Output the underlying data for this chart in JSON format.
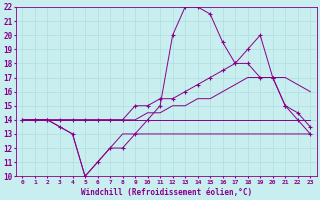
{
  "xlabel": "Windchill (Refroidissement éolien,°C)",
  "background_color": "#c8eef0",
  "grid_color": "#b0dde0",
  "line_color": "#880088",
  "xlim": [
    -0.5,
    23.5
  ],
  "ylim": [
    10,
    22
  ],
  "yticks": [
    10,
    11,
    12,
    13,
    14,
    15,
    16,
    17,
    18,
    19,
    20,
    21,
    22
  ],
  "xticks": [
    0,
    1,
    2,
    3,
    4,
    5,
    6,
    7,
    8,
    9,
    10,
    11,
    12,
    13,
    14,
    15,
    16,
    17,
    18,
    19,
    20,
    21,
    22,
    23
  ],
  "series": [
    {
      "x": [
        0,
        1,
        2,
        3,
        4,
        5,
        6,
        7,
        8,
        9,
        10,
        11,
        12,
        13,
        14,
        15,
        16,
        17,
        18,
        19,
        20,
        21,
        22,
        23
      ],
      "y": [
        14,
        14,
        14,
        13.5,
        13,
        10,
        11,
        12,
        13,
        13,
        13,
        13,
        13,
        13,
        13,
        13,
        13,
        13,
        13,
        13,
        13,
        13,
        13,
        13
      ],
      "marker": false
    },
    {
      "x": [
        0,
        1,
        2,
        3,
        4,
        5,
        6,
        7,
        8,
        9,
        10,
        11,
        12,
        13,
        14,
        15,
        16,
        17,
        18,
        19,
        20,
        21,
        22,
        23
      ],
      "y": [
        14,
        14,
        14,
        14,
        14,
        14,
        14,
        14,
        14,
        14,
        14,
        14,
        14,
        14,
        14,
        14,
        14,
        14,
        14,
        14,
        14,
        14,
        14,
        14
      ],
      "marker": false
    },
    {
      "x": [
        0,
        1,
        2,
        3,
        4,
        5,
        6,
        7,
        8,
        9,
        10,
        11,
        12,
        13,
        14,
        15,
        16,
        17,
        18,
        19,
        20,
        21,
        22,
        23
      ],
      "y": [
        14,
        14,
        14,
        14,
        14,
        14,
        14,
        14,
        14,
        14,
        14.5,
        14.5,
        15,
        15,
        15.5,
        15.5,
        16,
        16.5,
        17,
        17,
        17,
        17,
        16.5,
        16
      ],
      "marker": false
    },
    {
      "x": [
        0,
        1,
        2,
        3,
        4,
        5,
        6,
        7,
        8,
        9,
        10,
        11,
        12,
        13,
        14,
        15,
        16,
        17,
        18,
        19,
        20,
        21,
        22,
        23
      ],
      "y": [
        14,
        14,
        14,
        14,
        14,
        14,
        14,
        14,
        14,
        15,
        15,
        15.5,
        15.5,
        16,
        16.5,
        17,
        17.5,
        18,
        19,
        20,
        17,
        15,
        14.5,
        13.5
      ],
      "marker": true
    },
    {
      "x": [
        0,
        1,
        2,
        3,
        4,
        5,
        6,
        7,
        8,
        9,
        10,
        11,
        12,
        13,
        14,
        15,
        16,
        17,
        18,
        19,
        20,
        21,
        22,
        23
      ],
      "y": [
        14,
        14,
        14,
        13.5,
        13,
        10,
        11,
        12,
        12,
        13,
        14,
        15,
        20,
        22,
        22,
        21.5,
        19.5,
        18,
        18,
        17,
        17,
        15,
        14,
        13
      ],
      "marker": true
    }
  ]
}
